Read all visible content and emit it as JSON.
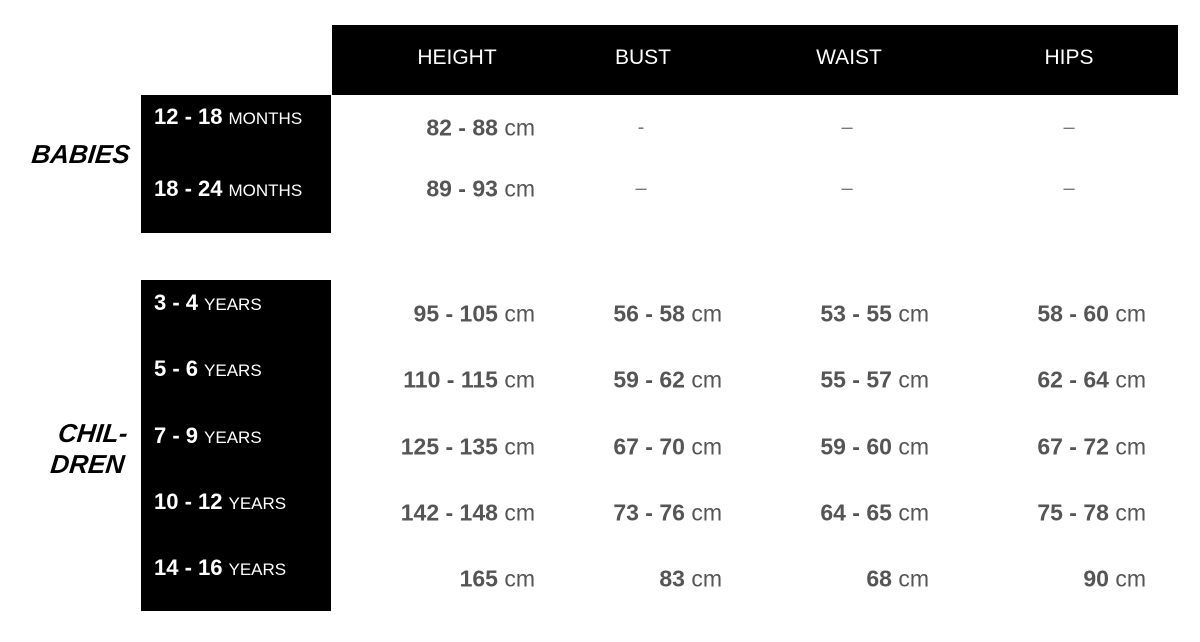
{
  "headers": [
    "HEIGHT",
    "BUST",
    "WAIST",
    "HIPS"
  ],
  "unit": "cm",
  "groups": {
    "babies": {
      "title": "BABIES",
      "rows": [
        {
          "range": "12 - 18",
          "unit": "MONTHS",
          "height": "82 - 88",
          "bust": "-",
          "waist": "–",
          "hips": "–"
        },
        {
          "range": "18 - 24",
          "unit": "MONTHS",
          "height": "89 - 93",
          "bust": "–",
          "waist": "–",
          "hips": "–"
        }
      ]
    },
    "children": {
      "title_line1": "CHIL-",
      "title_line2": "DREN",
      "rows": [
        {
          "range": "3 - 4",
          "unit": "YEARS",
          "height": "95 - 105",
          "bust": "56 - 58",
          "waist": "53 - 55",
          "hips": "58 - 60"
        },
        {
          "range": "5 - 6",
          "unit": "YEARS",
          "height": "110 - 115",
          "bust": "59 - 62",
          "waist": "55 - 57",
          "hips": "62 - 64"
        },
        {
          "range": "7 - 9",
          "unit": "YEARS",
          "height": "125 - 135",
          "bust": "67 - 70",
          "waist": "59 - 60",
          "hips": "67 - 72"
        },
        {
          "range": "10 - 12",
          "unit": "YEARS",
          "height": "142 - 148",
          "bust": "73 - 76",
          "waist": "64 - 65",
          "hips": "75 - 78"
        },
        {
          "range": "14 - 16",
          "unit": "YEARS",
          "height": "165",
          "bust": "83",
          "waist": "68",
          "hips": "90"
        }
      ]
    }
  }
}
